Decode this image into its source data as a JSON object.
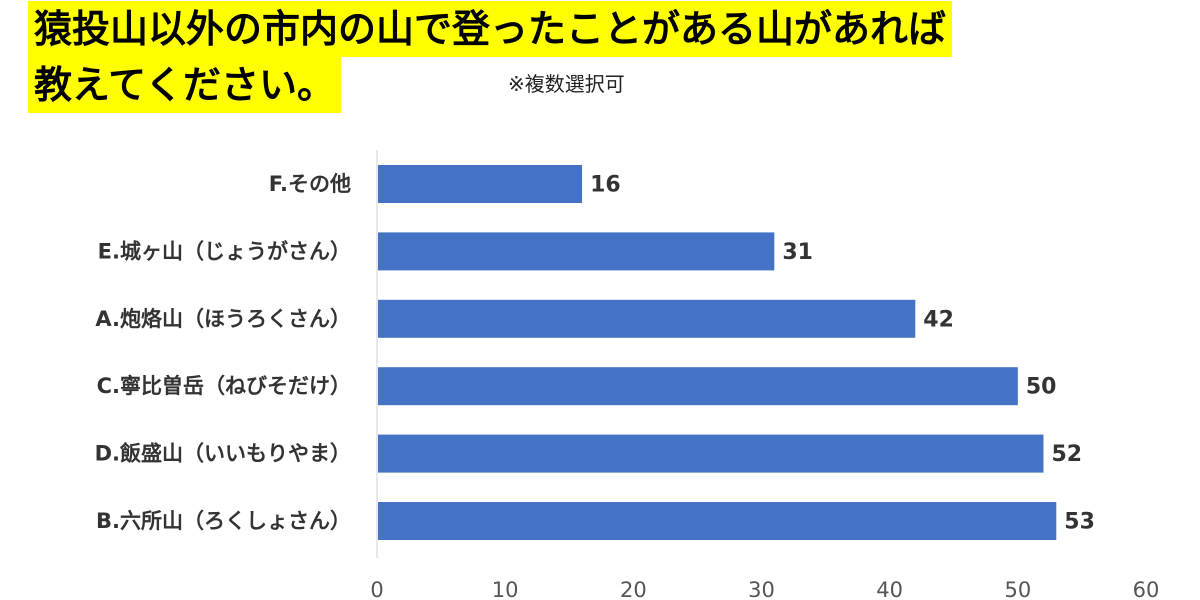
{
  "header": {
    "title_line1": "猿投山以外の市内の山で登ったことがある山があれば",
    "title_line2": "教えてください。",
    "note": "※複数選択可"
  },
  "colors": {
    "bar": "#4472c4",
    "title_highlight": "#ffff00",
    "axis_line": "#d0d0d0"
  },
  "chart_data": {
    "type": "bar",
    "orientation": "horizontal",
    "categories": [
      "F.その他",
      "E.城ヶ山（じょうがさん）",
      "A.炮烙山（ほうろくさん）",
      "C.寧比曽岳（ねびそだけ）",
      "D.飯盛山（いいもりやま）",
      "B.六所山（ろくしょさん）"
    ],
    "values": [
      16,
      31,
      42,
      50,
      52,
      53
    ],
    "xlim": [
      0,
      60
    ],
    "xticks": [
      0,
      10,
      20,
      30,
      40,
      50,
      60
    ],
    "grid": false,
    "data_labels": true
  }
}
